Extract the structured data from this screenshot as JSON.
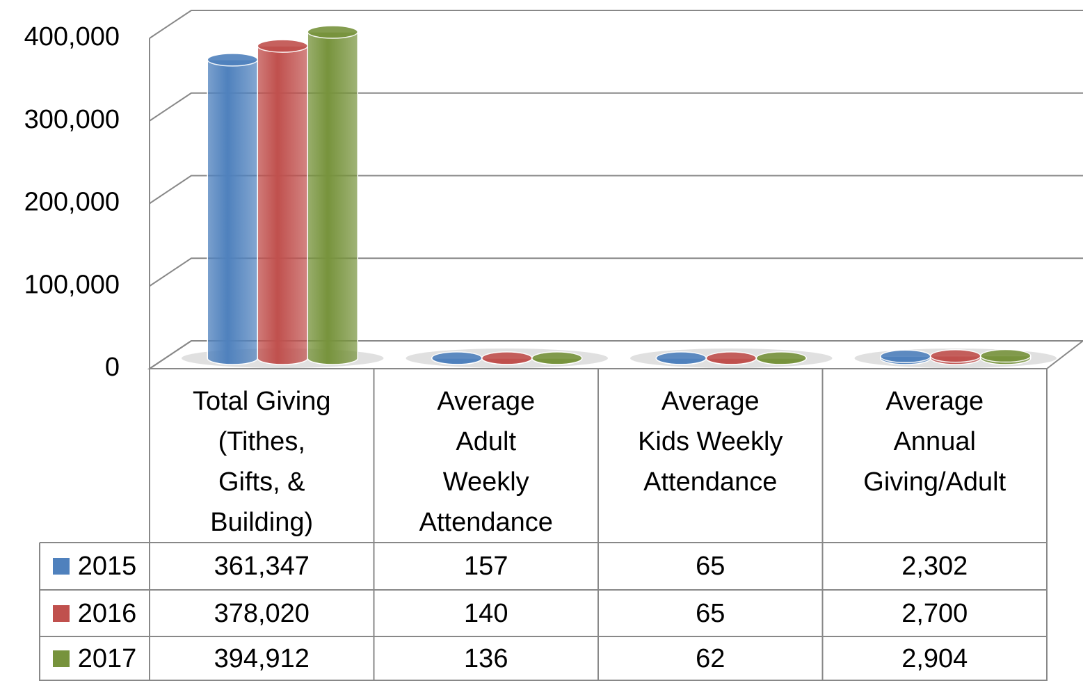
{
  "chart_data": {
    "type": "bar",
    "categories": [
      "Total Giving\n(Tithes,\nGifts, &\nBuilding)",
      "Average\nAdult\nWeekly\nAttendance",
      "Average\nKids Weekly\nAttendance",
      "Average\nAnnual\nGiving/Adult"
    ],
    "series": [
      {
        "name": "2015",
        "color": "#4f81bd",
        "values": [
          361347,
          157,
          65,
          2302
        ],
        "value_labels": [
          "361,347",
          "157",
          "65",
          "2,302"
        ]
      },
      {
        "name": "2016",
        "color": "#c0504d",
        "values": [
          378020,
          140,
          65,
          2700
        ],
        "value_labels": [
          "378,020",
          "140",
          "65",
          "2,700"
        ]
      },
      {
        "name": "2017",
        "color": "#77933c",
        "values": [
          394912,
          136,
          62,
          2904
        ],
        "value_labels": [
          "394,912",
          "136",
          "62",
          "2,904"
        ]
      }
    ],
    "ylim": [
      0,
      400000
    ],
    "yticks": [
      0,
      {
        "value": 100000,
        "label": "100,000"
      },
      {
        "value": 200000,
        "label": "200,000"
      },
      {
        "value": 300000,
        "label": "300,000"
      },
      {
        "value": 400000,
        "label": "400,000"
      }
    ],
    "grid": true
  }
}
